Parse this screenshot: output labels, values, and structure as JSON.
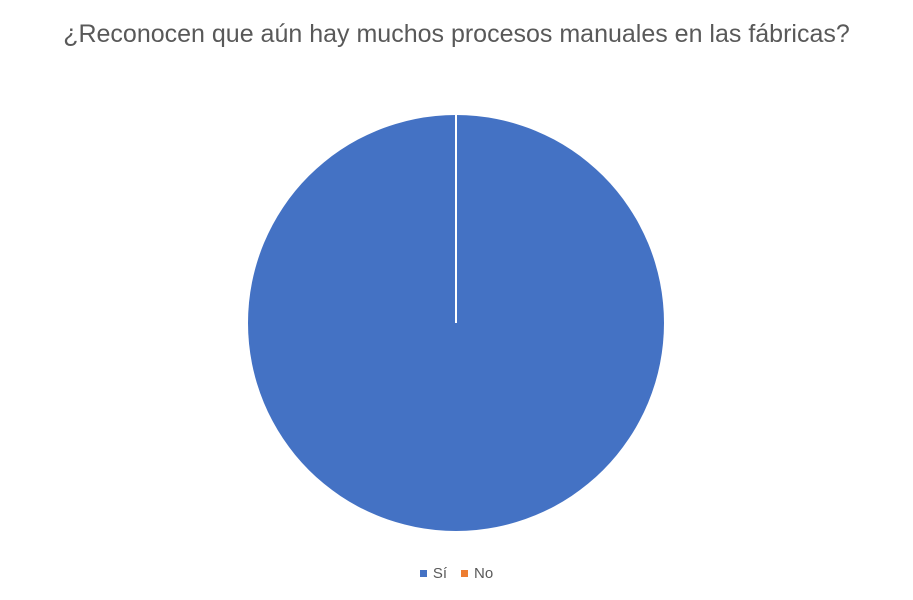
{
  "chart_data": {
    "type": "pie",
    "title": "¿Reconocen que aún hay muchos procesos manuales en las fábricas?",
    "categories": [
      "Sí",
      "No"
    ],
    "values": [
      100,
      0
    ],
    "colors": [
      "#4472C4",
      "#ED7D31"
    ],
    "legend": "bottom",
    "slice_border_color": "#ffffff"
  }
}
